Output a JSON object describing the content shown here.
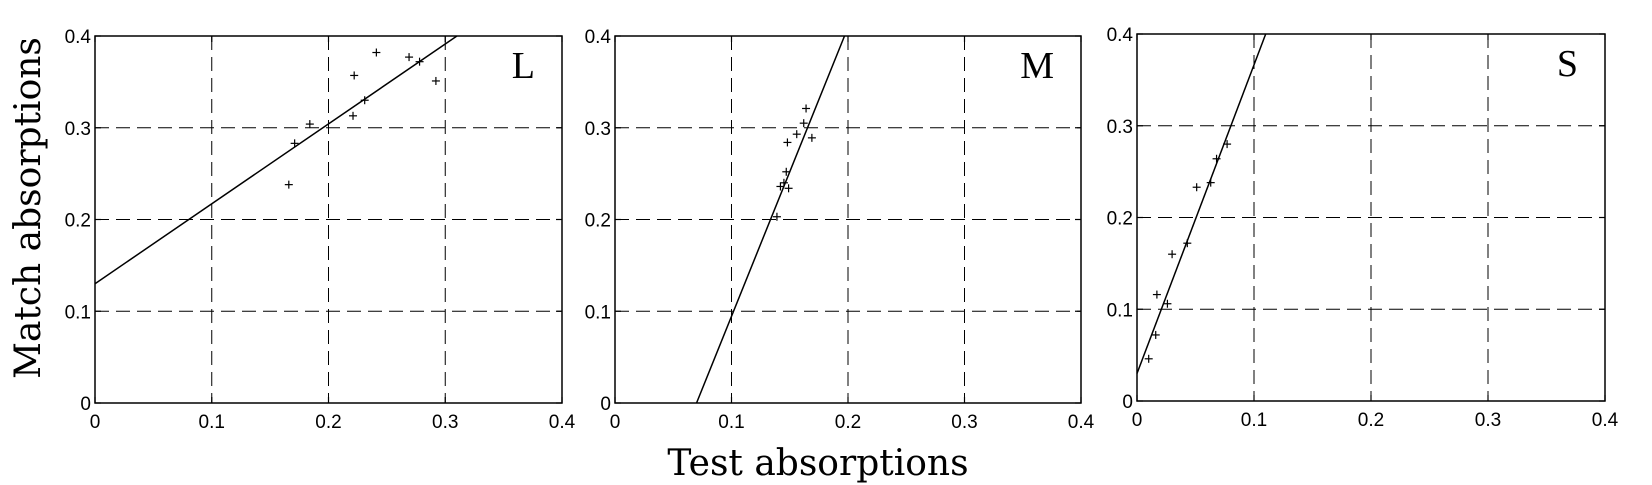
{
  "ylabel": "Match absorptions",
  "xlabel": "Test absorptions",
  "chart_data": [
    {
      "type": "scatter",
      "label": "L",
      "xlim": [
        0,
        0.4
      ],
      "ylim": [
        0,
        0.4
      ],
      "x_ticks": [
        "0",
        "0.1",
        "0.2",
        "0.3",
        "0.4"
      ],
      "y_ticks": [
        "0",
        "0.1",
        "0.2",
        "0.3",
        "0.4"
      ],
      "grid": true,
      "points": [
        [
          0.166,
          0.238
        ],
        [
          0.171,
          0.283
        ],
        [
          0.184,
          0.304
        ],
        [
          0.221,
          0.313
        ],
        [
          0.222,
          0.357
        ],
        [
          0.231,
          0.33
        ],
        [
          0.241,
          0.382
        ],
        [
          0.269,
          0.377
        ],
        [
          0.278,
          0.372
        ],
        [
          0.292,
          0.351
        ]
      ],
      "fit_line": [
        [
          0,
          0.13
        ],
        [
          0.31,
          0.4
        ]
      ]
    },
    {
      "type": "scatter",
      "label": "M",
      "xlim": [
        0,
        0.4
      ],
      "ylim": [
        0,
        0.4
      ],
      "x_ticks": [
        "0",
        "0.1",
        "0.2",
        "0.3",
        "0.4"
      ],
      "y_ticks": [
        "0",
        "0.1",
        "0.2",
        "0.3",
        "0.4"
      ],
      "grid": true,
      "points": [
        [
          0.139,
          0.203
        ],
        [
          0.142,
          0.236
        ],
        [
          0.145,
          0.24
        ],
        [
          0.147,
          0.252
        ],
        [
          0.148,
          0.284
        ],
        [
          0.149,
          0.234
        ],
        [
          0.156,
          0.293
        ],
        [
          0.162,
          0.305
        ],
        [
          0.164,
          0.321
        ],
        [
          0.169,
          0.289
        ]
      ],
      "fit_line": [
        [
          0.07,
          0
        ],
        [
          0.197,
          0.4
        ]
      ]
    },
    {
      "type": "scatter",
      "label": "S",
      "xlim": [
        0,
        0.4
      ],
      "ylim": [
        0,
        0.4
      ],
      "x_ticks": [
        "0",
        "0.1",
        "0.2",
        "0.3",
        "0.4"
      ],
      "y_ticks": [
        "0",
        "0.1",
        "0.2",
        "0.3",
        "0.4"
      ],
      "grid": true,
      "points": [
        [
          0.01,
          0.046
        ],
        [
          0.016,
          0.072
        ],
        [
          0.017,
          0.116
        ],
        [
          0.026,
          0.106
        ],
        [
          0.03,
          0.16
        ],
        [
          0.043,
          0.172
        ],
        [
          0.051,
          0.233
        ],
        [
          0.063,
          0.238
        ],
        [
          0.068,
          0.264
        ],
        [
          0.077,
          0.28
        ]
      ],
      "fit_line": [
        [
          0,
          0.03
        ],
        [
          0.11,
          0.4
        ]
      ]
    }
  ]
}
